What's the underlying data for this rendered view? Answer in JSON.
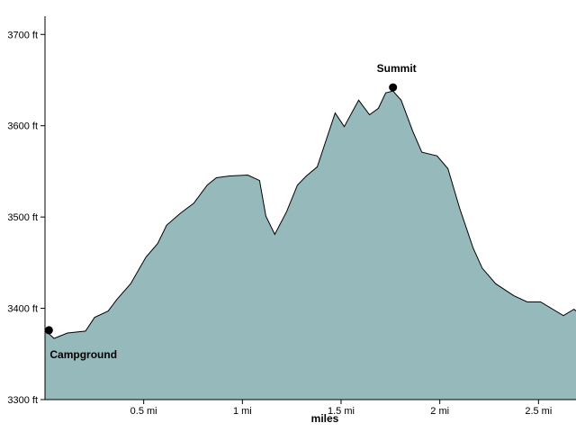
{
  "chart_data": {
    "type": "area",
    "x_label": "miles",
    "color": "#96babb",
    "line_color": "#000000",
    "xlim": [
      0,
      2.69
    ],
    "ylim": [
      3300,
      3720
    ],
    "xticks": [
      {
        "value": 0.5,
        "label": "0.5 mi"
      },
      {
        "value": 1,
        "label": "1 mi"
      },
      {
        "value": 1.5,
        "label": "1.5 mi"
      },
      {
        "value": 2,
        "label": "2 mi"
      },
      {
        "value": 2.5,
        "label": "2.5 mi"
      }
    ],
    "yticks": [
      {
        "value": 3300,
        "label": "3300 ft"
      },
      {
        "value": 3400,
        "label": "3400 ft"
      },
      {
        "value": 3500,
        "label": "3500 ft"
      },
      {
        "value": 3600,
        "label": "3600 ft"
      },
      {
        "value": 3700,
        "label": "3700 ft"
      }
    ],
    "x": [
      0,
      0.046,
      0.114,
      0.205,
      0.251,
      0.32,
      0.365,
      0.434,
      0.511,
      0.571,
      0.616,
      0.685,
      0.753,
      0.822,
      0.868,
      0.936,
      1.027,
      1.087,
      1.119,
      1.164,
      1.224,
      1.279,
      1.324,
      1.379,
      1.416,
      1.47,
      1.516,
      1.589,
      1.644,
      1.689,
      1.726,
      1.763,
      1.804,
      1.863,
      1.909,
      1.986,
      2.041,
      2.1,
      2.169,
      2.215,
      2.283,
      2.374,
      2.443,
      2.511,
      2.626,
      2.68,
      2.69
    ],
    "values": [
      3376,
      3367,
      3373,
      3375,
      3390,
      3397,
      3410,
      3427,
      3456,
      3471,
      3491,
      3504,
      3515,
      3535,
      3543,
      3545,
      3546,
      3540,
      3501,
      3481,
      3506,
      3535,
      3545,
      3555,
      3579,
      3614,
      3599,
      3628,
      3612,
      3619,
      3636,
      3638,
      3628,
      3594,
      3571,
      3567,
      3553,
      3510,
      3466,
      3444,
      3427,
      3414,
      3407,
      3407,
      3392,
      3399,
      3397
    ],
    "annotations": [
      {
        "text": "Campground",
        "x": 0.02,
        "y": 3376,
        "position": "below"
      },
      {
        "text": "Summit",
        "x": 1.763,
        "y": 3642,
        "position": "above"
      }
    ]
  }
}
